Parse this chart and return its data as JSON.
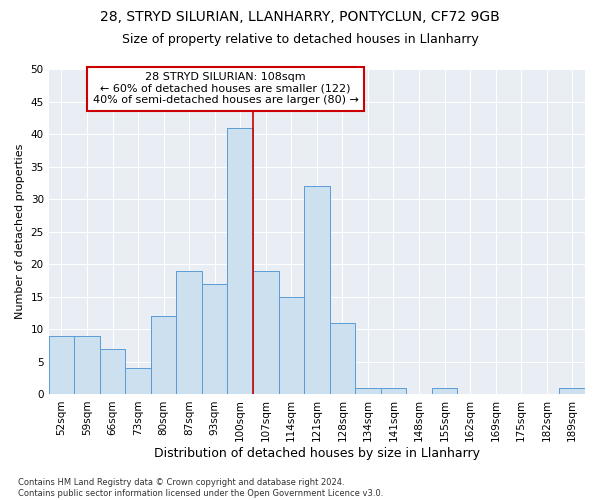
{
  "title1": "28, STRYD SILURIAN, LLANHARRY, PONTYCLUN, CF72 9GB",
  "title2": "Size of property relative to detached houses in Llanharry",
  "xlabel": "Distribution of detached houses by size in Llanharry",
  "ylabel": "Number of detached properties",
  "footnote": "Contains HM Land Registry data © Crown copyright and database right 2024.\nContains public sector information licensed under the Open Government Licence v3.0.",
  "categories": [
    "52sqm",
    "59sqm",
    "66sqm",
    "73sqm",
    "80sqm",
    "87sqm",
    "93sqm",
    "100sqm",
    "107sqm",
    "114sqm",
    "121sqm",
    "128sqm",
    "134sqm",
    "141sqm",
    "148sqm",
    "155sqm",
    "162sqm",
    "169sqm",
    "175sqm",
    "182sqm",
    "189sqm"
  ],
  "values": [
    9,
    9,
    7,
    4,
    12,
    19,
    17,
    41,
    19,
    15,
    32,
    11,
    1,
    1,
    0,
    1,
    0,
    0,
    0,
    0,
    1
  ],
  "bar_color": "#cce0f0",
  "bar_edge_color": "#5b9bd5",
  "highlight_index": 7,
  "red_line_color": "#cc0000",
  "annotation_text": "28 STRYD SILURIAN: 108sqm\n← 60% of detached houses are smaller (122)\n40% of semi-detached houses are larger (80) →",
  "annotation_box_color": "#ffffff",
  "annotation_box_edge_color": "#cc0000",
  "ylim": [
    0,
    50
  ],
  "yticks": [
    0,
    5,
    10,
    15,
    20,
    25,
    30,
    35,
    40,
    45,
    50
  ],
  "plot_bg_color": "#e8eef4",
  "title1_fontsize": 10,
  "title2_fontsize": 9,
  "xlabel_fontsize": 9,
  "ylabel_fontsize": 8,
  "tick_fontsize": 7.5,
  "annotation_fontsize": 8,
  "footnote_fontsize": 6
}
